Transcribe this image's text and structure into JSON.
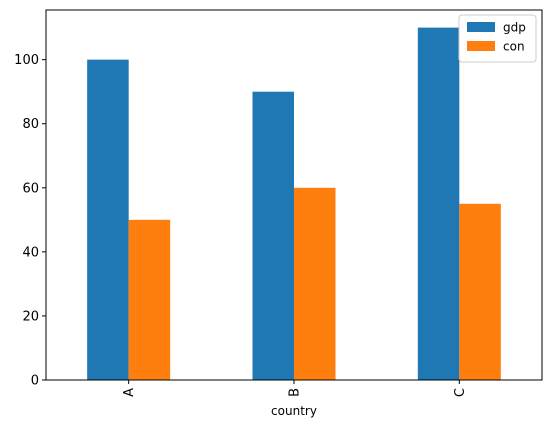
{
  "chart_data": {
    "type": "bar",
    "categories": [
      "A",
      "B",
      "C"
    ],
    "series": [
      {
        "name": "gdp",
        "values": [
          100,
          90,
          110
        ],
        "color": "#1f77b4"
      },
      {
        "name": "con",
        "values": [
          50,
          60,
          55
        ],
        "color": "#ff7f0e"
      }
    ],
    "xlabel": "country",
    "ylabel": "",
    "ylim": [
      0,
      115.5
    ],
    "yticks": [
      0,
      20,
      40,
      60,
      80,
      100
    ],
    "grid": false,
    "legend_position": "top-right"
  }
}
